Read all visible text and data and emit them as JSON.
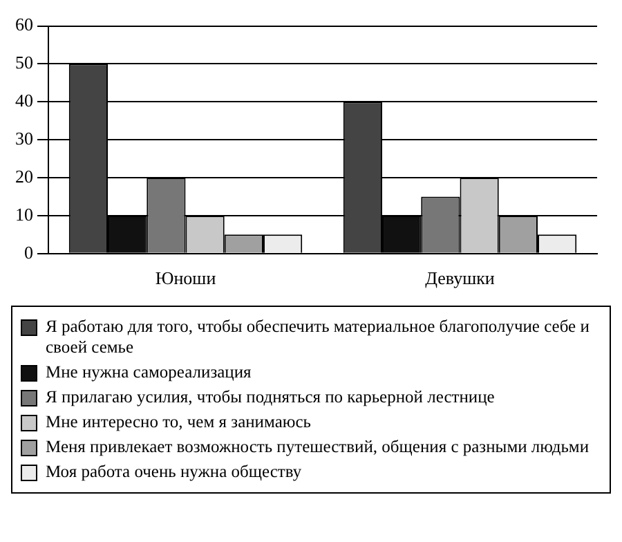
{
  "chart_data": {
    "type": "bar",
    "categories": [
      "Юноши",
      "Девушки"
    ],
    "series": [
      {
        "name": "Я работаю для того, чтобы обеспечить материальное благополучие себе и своей семье",
        "color": "#444444",
        "values": [
          50,
          40
        ]
      },
      {
        "name": "Мне нужна самореализация",
        "color": "#111111",
        "values": [
          10,
          10
        ]
      },
      {
        "name": "Я прилагаю усилия, чтобы подняться по карьерной лестнице",
        "color": "#777777",
        "values": [
          20,
          15
        ]
      },
      {
        "name": "Мне интересно то, чем я занимаюсь",
        "color": "#c8c8c8",
        "values": [
          10,
          20
        ]
      },
      {
        "name": "Меня привлекает возможность путешествий, общения с разными людьми",
        "color": "#a0a0a0",
        "values": [
          5,
          10
        ]
      },
      {
        "name": "Моя работа очень нужна обществу",
        "color": "#ececec",
        "values": [
          5,
          5
        ]
      }
    ],
    "ylim": [
      0,
      60
    ],
    "yticks": [
      0,
      10,
      20,
      30,
      40,
      50,
      60
    ],
    "grid": "y",
    "legend": "bottom"
  }
}
